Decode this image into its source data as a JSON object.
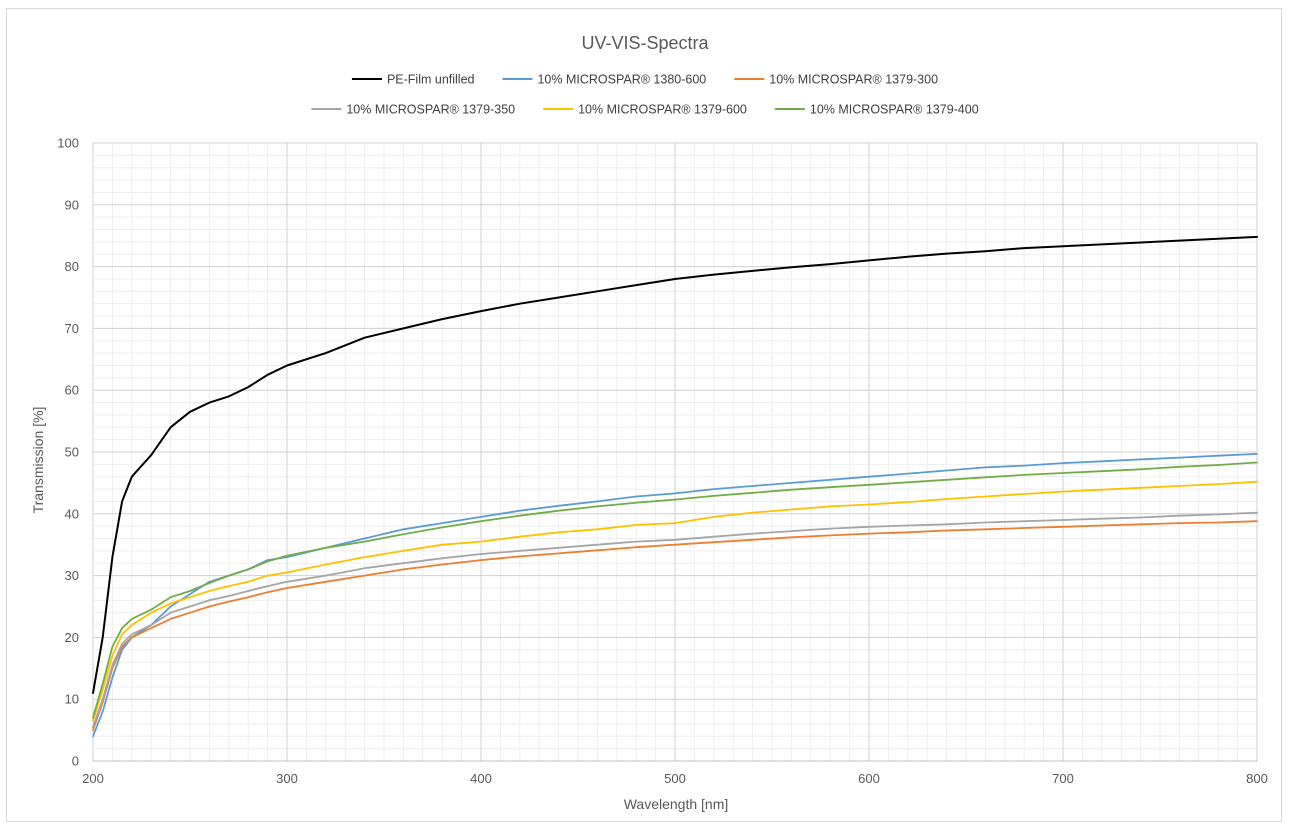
{
  "chart_data": {
    "type": "line",
    "title": "UV-VIS-Spectra",
    "xlabel": "Wavelength [nm]",
    "ylabel": "Transmission [%]",
    "xlim": [
      200,
      800
    ],
    "ylim": [
      0,
      100
    ],
    "x_major_ticks": [
      200,
      300,
      400,
      500,
      600,
      700,
      800
    ],
    "y_major_ticks": [
      0,
      10,
      20,
      30,
      40,
      50,
      60,
      70,
      80,
      90,
      100
    ],
    "x_minor_step": 10,
    "y_minor_step": 2,
    "grid": "major and minor",
    "legend_position": "top",
    "x": [
      200,
      205,
      210,
      215,
      220,
      230,
      240,
      250,
      260,
      270,
      280,
      290,
      300,
      320,
      340,
      360,
      380,
      400,
      420,
      440,
      460,
      480,
      500,
      520,
      540,
      560,
      580,
      600,
      620,
      640,
      660,
      680,
      700,
      720,
      740,
      760,
      780,
      800
    ],
    "series": [
      {
        "name": "PE-Film unfilled",
        "color": "#000000",
        "values": [
          11.0,
          20.0,
          33.0,
          42.0,
          46.0,
          49.5,
          54.0,
          56.5,
          58.0,
          59.0,
          60.5,
          62.5,
          64.0,
          66.0,
          68.5,
          70.0,
          71.5,
          72.8,
          74.0,
          75.0,
          76.0,
          77.0,
          78.0,
          78.7,
          79.3,
          79.9,
          80.4,
          81.0,
          81.6,
          82.1,
          82.5,
          83.0,
          83.3,
          83.6,
          83.9,
          84.2,
          84.5,
          84.8
        ]
      },
      {
        "name": "10% MICROSPAR® 1380-600",
        "color": "#5b9bd5",
        "values": [
          4.0,
          8.0,
          13.5,
          18.0,
          20.0,
          22.0,
          25.0,
          27.0,
          29.0,
          30.0,
          31.0,
          32.5,
          33.0,
          34.5,
          36.0,
          37.5,
          38.5,
          39.5,
          40.5,
          41.3,
          42.0,
          42.8,
          43.3,
          44.0,
          44.5,
          45.0,
          45.5,
          46.0,
          46.5,
          47.0,
          47.5,
          47.8,
          48.2,
          48.5,
          48.8,
          49.1,
          49.4,
          49.7
        ]
      },
      {
        "name": "10% MICROSPAR® 1379-300",
        "color": "#ed7d31",
        "values": [
          5.0,
          9.5,
          15.0,
          18.5,
          20.0,
          21.5,
          23.0,
          24.0,
          25.0,
          25.8,
          26.5,
          27.3,
          28.0,
          29.0,
          30.0,
          31.0,
          31.8,
          32.5,
          33.1,
          33.6,
          34.1,
          34.6,
          35.0,
          35.4,
          35.8,
          36.2,
          36.5,
          36.8,
          37.0,
          37.3,
          37.5,
          37.7,
          37.9,
          38.1,
          38.3,
          38.5,
          38.6,
          38.8
        ]
      },
      {
        "name": "10% MICROSPAR® 1379-350",
        "color": "#a5a5a5",
        "values": [
          5.5,
          10.0,
          15.5,
          19.0,
          20.5,
          22.0,
          24.0,
          25.0,
          26.0,
          26.7,
          27.5,
          28.3,
          29.0,
          30.0,
          31.2,
          32.0,
          32.8,
          33.5,
          34.0,
          34.5,
          35.0,
          35.5,
          35.8,
          36.3,
          36.8,
          37.2,
          37.6,
          37.9,
          38.1,
          38.3,
          38.6,
          38.8,
          39.0,
          39.2,
          39.4,
          39.7,
          39.9,
          40.2
        ]
      },
      {
        "name": "10% MICROSPAR® 1379-600",
        "color": "#ffc000",
        "values": [
          6.5,
          11.5,
          17.0,
          20.5,
          22.0,
          24.0,
          25.5,
          26.5,
          27.5,
          28.3,
          29.0,
          30.0,
          30.5,
          31.8,
          33.0,
          34.0,
          35.0,
          35.5,
          36.3,
          37.0,
          37.5,
          38.2,
          38.5,
          39.5,
          40.2,
          40.7,
          41.2,
          41.5,
          41.9,
          42.4,
          42.8,
          43.2,
          43.6,
          43.9,
          44.2,
          44.5,
          44.8,
          45.2
        ]
      },
      {
        "name": "10% MICROSPAR® 1379-400",
        "color": "#70ad47",
        "values": [
          7.0,
          12.5,
          18.5,
          21.5,
          23.0,
          24.5,
          26.5,
          27.5,
          28.8,
          30.0,
          31.0,
          32.3,
          33.2,
          34.5,
          35.5,
          36.7,
          37.8,
          38.8,
          39.7,
          40.5,
          41.2,
          41.8,
          42.3,
          42.9,
          43.4,
          43.9,
          44.3,
          44.7,
          45.1,
          45.5,
          45.9,
          46.3,
          46.6,
          46.9,
          47.2,
          47.6,
          47.9,
          48.3
        ]
      }
    ]
  }
}
